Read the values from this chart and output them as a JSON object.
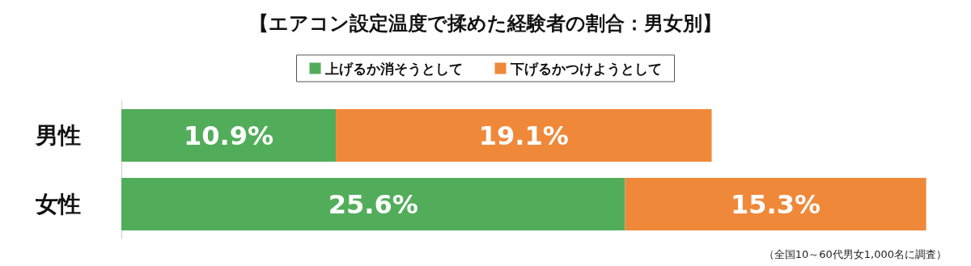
{
  "chart_data": {
    "type": "bar",
    "orientation": "horizontal",
    "stacked": true,
    "title": "【エアコン設定温度で揉めた経験者の割合：男女別】",
    "categories": [
      "男性",
      "女性"
    ],
    "series": [
      {
        "name": "上げるか消そうとして",
        "color": "#52ad5b",
        "values": [
          10.9,
          25.6
        ],
        "value_labels": [
          "10.9%",
          "25.6%"
        ]
      },
      {
        "name": "下げるかつけようとして",
        "color": "#f0883a",
        "values": [
          19.1,
          15.3
        ],
        "value_labels": [
          "19.1%",
          "15.3%"
        ]
      }
    ],
    "xlim": [
      0,
      41
    ],
    "tick_labels": "y",
    "legend": "top",
    "grid": false,
    "annotations": [
      "（全国10～60代男女1,000名に調査）"
    ]
  }
}
